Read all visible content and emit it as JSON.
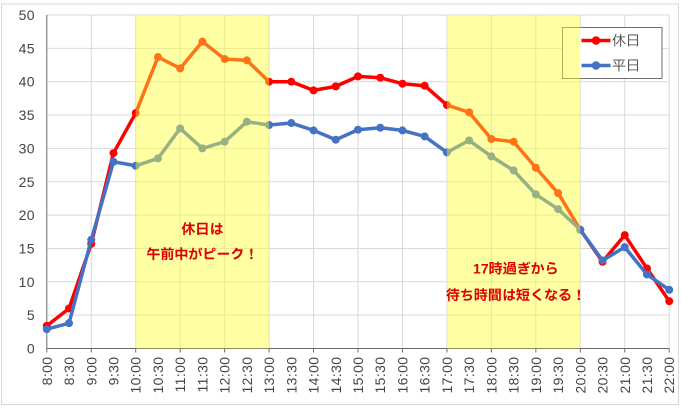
{
  "chart_data": {
    "type": "line",
    "title": "",
    "xlabel": "",
    "ylabel": "",
    "categories": [
      "8:00",
      "8:30",
      "9:00",
      "9:30",
      "10:00",
      "10:30",
      "11:00",
      "11:30",
      "12:00",
      "12:30",
      "13:00",
      "13:30",
      "14:00",
      "14:30",
      "15:00",
      "15:30",
      "16:00",
      "16:30",
      "17:00",
      "17:30",
      "18:00",
      "18:30",
      "19:00",
      "19:30",
      "20:00",
      "20:30",
      "21:00",
      "21:30",
      "22:00"
    ],
    "series": [
      {
        "name": "休日",
        "color": "#FF0000",
        "values": [
          3.4,
          6,
          15.7,
          29.3,
          35.3,
          43.7,
          42,
          46,
          43.4,
          43.2,
          40,
          40,
          38.7,
          39.3,
          40.8,
          40.6,
          39.7,
          39.4,
          36.5,
          35.4,
          31.4,
          31,
          27.1,
          23.3,
          17.8,
          13,
          17,
          12,
          7.1
        ]
      },
      {
        "name": "平日",
        "color": "#4472C4",
        "values": [
          2.9,
          3.8,
          16.3,
          28,
          27.4,
          28.5,
          33,
          30,
          31,
          34,
          33.5,
          33.8,
          32.7,
          31.3,
          32.8,
          33.1,
          32.7,
          31.8,
          29.4,
          31.2,
          28.8,
          26.7,
          23.1,
          20.9,
          17.8,
          13.2,
          15.2,
          11.1,
          8.8
        ]
      }
    ],
    "ylim": [
      0,
      50
    ],
    "ytick_interval": 5,
    "yticks": [
      "0",
      "5",
      "10",
      "15",
      "20",
      "25",
      "30",
      "35",
      "40",
      "45",
      "50"
    ],
    "grid": true,
    "legend_position": "top-right",
    "highlight_bands": [
      {
        "from": "10:00",
        "to": "13:00",
        "color": "#FFFF33",
        "opacity": 0.45
      },
      {
        "from": "17:00",
        "to": "20:00",
        "color": "#FFFF33",
        "opacity": 0.45
      }
    ],
    "annotations": [
      {
        "lines": [
          "休日は",
          "午前中がピーク！"
        ],
        "color": "#DE0000",
        "center_category_index": 7.0,
        "line_values": [
          17.95,
          14.2
        ]
      },
      {
        "lines": [
          "17時過ぎから",
          "待ち時間は短くなる！"
        ],
        "color": "#DE0000",
        "center_category_index": 21.1,
        "line_values": [
          12.0,
          8.05
        ]
      }
    ],
    "colors": {
      "plot_background": "#FFFFFF",
      "gridline": "#D9D9D9",
      "axis_line": "#696969",
      "tick_text": "#444444",
      "frame_border": "#D9D9D9",
      "legend_border": "#6E6E6E",
      "legend_fill": "#FFFFFF"
    }
  },
  "legend": {
    "items": [
      {
        "label": "休日"
      },
      {
        "label": "平日"
      }
    ]
  }
}
